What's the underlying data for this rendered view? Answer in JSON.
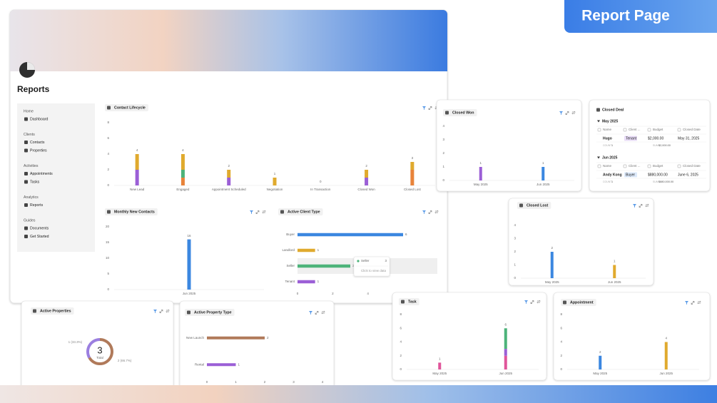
{
  "banner": "Report Page",
  "page_title": "Reports",
  "sidebar": [
    {
      "heading": "Home",
      "items": [
        "Dashboard"
      ]
    },
    {
      "heading": "Clients",
      "items": [
        "Contacts",
        "Properties"
      ]
    },
    {
      "heading": "Activities",
      "items": [
        "Appointments",
        "Tasks"
      ]
    },
    {
      "heading": "Analytics",
      "items": [
        "Reports"
      ]
    },
    {
      "heading": "Guides",
      "items": [
        "Documents",
        "Get Started"
      ]
    }
  ],
  "chart_data": [
    {
      "type": "bar",
      "title": "Contact Lifecycle",
      "categories": [
        "New Lead",
        "Engaged",
        "Appointment Scheduled",
        "Negotiation",
        "In Transaction",
        "Closed Won",
        "Closed Lost"
      ],
      "series": [
        {
          "color": "#e8833a",
          "values": [
            0,
            1,
            0,
            0,
            0,
            0,
            2
          ]
        },
        {
          "color": "#9b5fd6",
          "values": [
            2,
            0,
            1,
            0,
            0,
            1,
            0
          ]
        },
        {
          "color": "#4db37a",
          "values": [
            0,
            1,
            0,
            0,
            0,
            0,
            0
          ]
        },
        {
          "color": "#e0aa2e",
          "values": [
            2,
            2,
            1,
            1,
            0,
            1,
            1
          ]
        }
      ],
      "totals": [
        4,
        4,
        2,
        1,
        0,
        2,
        3
      ],
      "ylim": [
        0,
        8
      ],
      "yticks": [
        0,
        2,
        4,
        6,
        8
      ]
    },
    {
      "type": "bar",
      "title": "Monthly New Contacts",
      "categories": [
        "Jun 2025"
      ],
      "values": [
        16
      ],
      "colors": [
        "#3b87e0"
      ],
      "ylim": [
        0,
        20
      ],
      "yticks": [
        0,
        5,
        10,
        15,
        20
      ]
    },
    {
      "type": "barh",
      "title": "Active Client Type",
      "categories": [
        "Buyer",
        "Landlord",
        "Seller",
        "Tenant"
      ],
      "values": [
        6,
        1,
        3,
        1
      ],
      "colors": [
        "#3b87e0",
        "#e0aa2e",
        "#4db37a",
        "#9b5fd6"
      ],
      "xlim": [
        0,
        6
      ],
      "xticks": [
        0,
        2,
        4
      ],
      "tooltip": {
        "label": "Seller",
        "value": 3,
        "hint": "Click to view data"
      }
    },
    {
      "type": "donut",
      "title": "Active Properties",
      "values": [
        1,
        2
      ],
      "value_labels": [
        "1 (33.3%)",
        "2 (66.7%)"
      ],
      "colors": [
        "#9b7fe0",
        "#b07a5a"
      ],
      "center_value": 3,
      "center_label": "Total"
    },
    {
      "type": "barh",
      "title": "Active Property Type",
      "categories": [
        "New Launch",
        "Rental"
      ],
      "values": [
        2,
        1
      ],
      "colors": [
        "#b07a5a",
        "#9b5fd6"
      ],
      "xlim": [
        0,
        4
      ],
      "xticks": [
        0,
        1,
        2,
        3,
        4
      ]
    },
    {
      "type": "bar",
      "title": "Closed Won",
      "categories": [
        "May 2025",
        "Jun 2025"
      ],
      "values": [
        1,
        1
      ],
      "colors": [
        "#9b5fd6",
        "#3b87e0"
      ],
      "ylim": [
        0,
        4
      ],
      "yticks": [
        0,
        1,
        2,
        3,
        4
      ]
    },
    {
      "type": "bar",
      "title": "Closed Lost",
      "categories": [
        "May 2025",
        "Jun 2025"
      ],
      "values": [
        2,
        1
      ],
      "colors": [
        "#3b87e0",
        "#e0aa2e"
      ],
      "ylim": [
        0,
        4
      ],
      "yticks": [
        0,
        1,
        2,
        3,
        4
      ]
    },
    {
      "type": "bar",
      "title": "Task",
      "categories": [
        "May 2025",
        "Jun 2025"
      ],
      "series": [
        {
          "color": "#e0559a",
          "values": [
            1,
            2
          ]
        },
        {
          "color": "#9b5fd6",
          "values": [
            0,
            1
          ]
        },
        {
          "color": "#4db37a",
          "values": [
            0,
            3
          ]
        }
      ],
      "totals": [
        1,
        6
      ],
      "ylim": [
        0,
        8
      ],
      "yticks": [
        0,
        2,
        4,
        6,
        8
      ]
    },
    {
      "type": "bar",
      "title": "Appointment",
      "categories": [
        "May 2025",
        "Jun 2025"
      ],
      "values": [
        2,
        4
      ],
      "colors": [
        "#3b87e0",
        "#e0aa2e"
      ],
      "ylim": [
        0,
        8
      ],
      "yticks": [
        0,
        2,
        4,
        6,
        8
      ]
    }
  ],
  "closed_deal": {
    "title": "Closed Deal",
    "columns": [
      "Name",
      "Client ...",
      "Budget",
      "Closed Date"
    ],
    "groups": [
      {
        "label": "May 2025",
        "rows": [
          [
            "Hugo",
            "Tenant",
            "$2,000.00",
            "May 31, 2025"
          ]
        ],
        "count_label": "COUNT",
        "count": 1,
        "sum_label": "SUM",
        "sum": "$2,000.00"
      },
      {
        "label": "Jun 2025",
        "rows": [
          [
            "Andy Kong",
            "Buyer",
            "$880,000.00",
            "June 6, 2025"
          ]
        ],
        "count_label": "COUNT",
        "count": 1,
        "sum_label": "SUM",
        "sum": "$880,000.00"
      }
    ]
  }
}
